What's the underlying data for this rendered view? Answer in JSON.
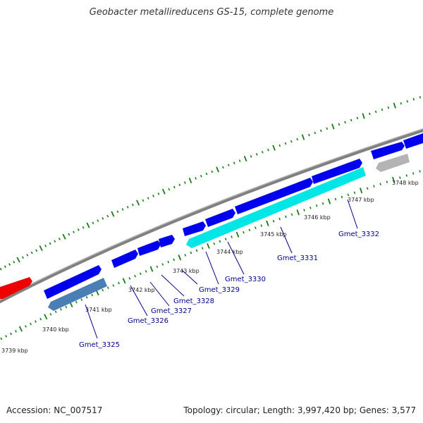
{
  "title": "Geobacter metallireducens GS-15, complete genome",
  "footer": {
    "accession": "Accession: NC_007517",
    "stats": "Topology: circular; Length: 3,997,420 bp; Genes: 3,577"
  },
  "colors": {
    "background": "#ffffff",
    "backbone": "#808080",
    "forward_gene": "#0000ee",
    "reverse_gene_cyan": "#00e5e5",
    "reverse_gene_steel": "#4a7fb5",
    "reverse_gene_gray": "#b4b4b4",
    "red_gene": "#ee0000",
    "tick": "#1a7a1a",
    "label": "#00008b"
  },
  "scale": {
    "kbp_labels": [
      "3739 kbp",
      "3740 kbp",
      "3741 kbp",
      "3742 kbp",
      "3743 kbp",
      "3744 kbp",
      "3745 kbp",
      "3746 kbp",
      "3747 kbp",
      "3748 kbp"
    ]
  },
  "gene_labels": [
    "Gmet_3325",
    "Gmet_3326",
    "Gmet_3327",
    "Gmet_3328",
    "Gmet_3329",
    "Gmet_3330",
    "Gmet_3331",
    "Gmet_3332"
  ]
}
